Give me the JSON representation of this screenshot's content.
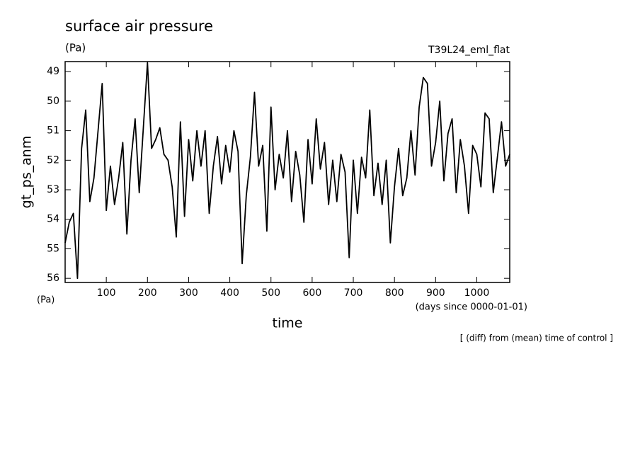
{
  "chart_data": {
    "type": "line",
    "title": "surface air pressure",
    "units": "(Pa)",
    "experiment": "T39L24_eml_flat",
    "ylabel": "gt_ps_anm",
    "yunits": "(Pa)",
    "xlabel": "time",
    "xunits": "(days since 0000-01-01)",
    "note": "[ (diff) from (mean) time of control ]",
    "y_inverted": true,
    "xlim": [
      0,
      1080
    ],
    "ylim": [
      48.66,
      56.14
    ],
    "xticks": [
      100,
      200,
      300,
      400,
      500,
      600,
      700,
      800,
      900,
      1000
    ],
    "yticks": [
      49,
      50,
      51,
      52,
      53,
      54,
      55,
      56
    ],
    "series": [
      {
        "color": "#000000",
        "x": [
          0,
          10,
          20,
          30,
          40,
          50,
          60,
          70,
          80,
          90,
          100,
          110,
          120,
          130,
          140,
          150,
          160,
          170,
          180,
          190,
          200,
          210,
          220,
          230,
          240,
          250,
          260,
          270,
          280,
          290,
          300,
          310,
          320,
          330,
          340,
          350,
          360,
          370,
          380,
          390,
          400,
          410,
          420,
          430,
          440,
          450,
          460,
          470,
          480,
          490,
          500,
          510,
          520,
          530,
          540,
          550,
          560,
          570,
          580,
          590,
          600,
          610,
          620,
          630,
          640,
          650,
          660,
          670,
          680,
          690,
          700,
          710,
          720,
          730,
          740,
          750,
          760,
          770,
          780,
          790,
          800,
          810,
          820,
          830,
          840,
          850,
          860,
          870,
          880,
          890,
          900,
          910,
          920,
          930,
          940,
          950,
          960,
          970,
          980,
          990,
          1000,
          1010,
          1020,
          1030,
          1040,
          1050,
          1060,
          1070,
          1080
        ],
        "values": [
          54.8,
          54.1,
          53.8,
          56.0,
          51.6,
          50.3,
          53.4,
          52.6,
          51.0,
          49.4,
          53.7,
          52.2,
          53.5,
          52.6,
          51.4,
          54.5,
          52.0,
          50.6,
          53.1,
          50.9,
          48.7,
          51.6,
          51.3,
          50.9,
          51.8,
          52.0,
          52.9,
          54.6,
          50.7,
          53.9,
          51.3,
          52.7,
          51.0,
          52.2,
          51.0,
          53.8,
          52.2,
          51.2,
          52.8,
          51.5,
          52.4,
          51.0,
          51.7,
          55.5,
          53.2,
          51.9,
          49.7,
          52.2,
          51.5,
          54.4,
          50.2,
          53.0,
          51.8,
          52.6,
          51.0,
          53.4,
          51.7,
          52.5,
          54.1,
          51.3,
          52.8,
          50.6,
          52.3,
          51.4,
          53.5,
          52.0,
          53.4,
          51.8,
          52.4,
          55.3,
          52.0,
          53.8,
          51.9,
          52.6,
          50.3,
          53.2,
          52.1,
          53.5,
          52.0,
          54.8,
          52.9,
          51.6,
          53.2,
          52.6,
          51.0,
          52.5,
          50.2,
          49.2,
          49.4,
          52.2,
          51.4,
          50.0,
          52.7,
          51.1,
          50.6,
          53.1,
          51.3,
          52.2,
          53.8,
          51.5,
          51.8,
          52.9,
          50.4,
          50.6,
          53.1,
          51.9,
          50.7,
          52.2,
          51.8
        ]
      }
    ]
  }
}
